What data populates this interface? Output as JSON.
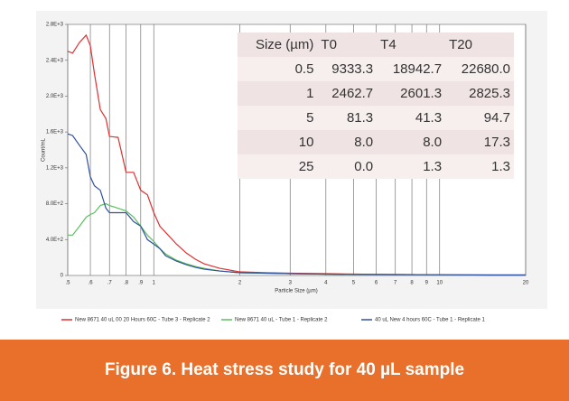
{
  "chart_data": {
    "type": "line",
    "x_label": "Particle Size (µm)",
    "y_label": "Count/mL",
    "log_x": true,
    "grid": true,
    "x": [
      0.5,
      0.52,
      0.55,
      0.58,
      0.6,
      0.62,
      0.65,
      0.68,
      0.7,
      0.75,
      0.8,
      0.85,
      0.9,
      0.95,
      1,
      1.05,
      1.1,
      1.2,
      1.3,
      1.4,
      1.5,
      1.7,
      2,
      2.5,
      3,
      4,
      5,
      7,
      10,
      15,
      20
    ],
    "series": [
      {
        "name": "New 8671 40 uL 00 20 Hours 60C - Tube 3 - Replicate 2",
        "color": "#e03030",
        "values": [
          2500,
          2480,
          2600,
          2680,
          2560,
          2250,
          1850,
          1750,
          1550,
          1540,
          1150,
          1150,
          950,
          900,
          700,
          550,
          480,
          350,
          250,
          180,
          130,
          80,
          40,
          30,
          25,
          20,
          15,
          10,
          8,
          5,
          5
        ]
      },
      {
        "name": "New 8671 40 uL - Tube 1 - Replicate 2",
        "color": "#5cc05c",
        "values": [
          450,
          450,
          550,
          650,
          680,
          700,
          780,
          800,
          780,
          750,
          720,
          650,
          550,
          450,
          380,
          300,
          240,
          170,
          130,
          100,
          80,
          50,
          30,
          25,
          20,
          15,
          12,
          10,
          8,
          5,
          5
        ]
      },
      {
        "name": "40 uL New 4 hours 60C - Tube 1 - Replicate 1",
        "color": "#3050a0",
        "values": [
          1580,
          1560,
          1450,
          1350,
          1100,
          1000,
          950,
          750,
          700,
          700,
          700,
          600,
          550,
          400,
          350,
          300,
          220,
          160,
          120,
          90,
          70,
          50,
          30,
          25,
          20,
          15,
          12,
          10,
          8,
          5,
          5
        ]
      }
    ],
    "xlim": [
      0.5,
      20
    ],
    "xticks": [
      {
        "value": 0.5,
        "label": ".5"
      },
      {
        "value": 0.6,
        "label": ".6"
      },
      {
        "value": 0.7,
        "label": ".7"
      },
      {
        "value": 0.8,
        "label": ".8"
      },
      {
        "value": 0.9,
        "label": ".9"
      },
      1,
      2,
      3,
      4,
      5,
      6,
      7,
      8,
      9,
      10,
      20
    ],
    "ylim": [
      0,
      2800
    ],
    "yticks": [
      0,
      {
        "value": 400,
        "label": "4.0E+2"
      },
      {
        "value": 800,
        "label": "8.0E+2"
      },
      {
        "value": 1200,
        "label": "1.2E+3"
      },
      {
        "value": 1600,
        "label": "1.6E+3"
      },
      {
        "value": 2000,
        "label": "2.0E+3"
      },
      {
        "value": 2400,
        "label": "2.4E+3"
      },
      {
        "value": 2800,
        "label": "2.8E+3"
      }
    ]
  },
  "table": {
    "headers": [
      "Size (µm)",
      "T0",
      "T4",
      "T20"
    ],
    "rows": [
      [
        "0.5",
        "9333.3",
        "18942.7",
        "22680.0"
      ],
      [
        "1",
        "2462.7",
        "2601.3",
        "2825.3"
      ],
      [
        "5",
        "81.3",
        "41.3",
        "94.7"
      ],
      [
        "10",
        "8.0",
        "8.0",
        "17.3"
      ],
      [
        "25",
        "0.0",
        "1.3",
        "1.3"
      ]
    ]
  },
  "caption": "Figure 6. Heat stress study for 40 µL sample"
}
